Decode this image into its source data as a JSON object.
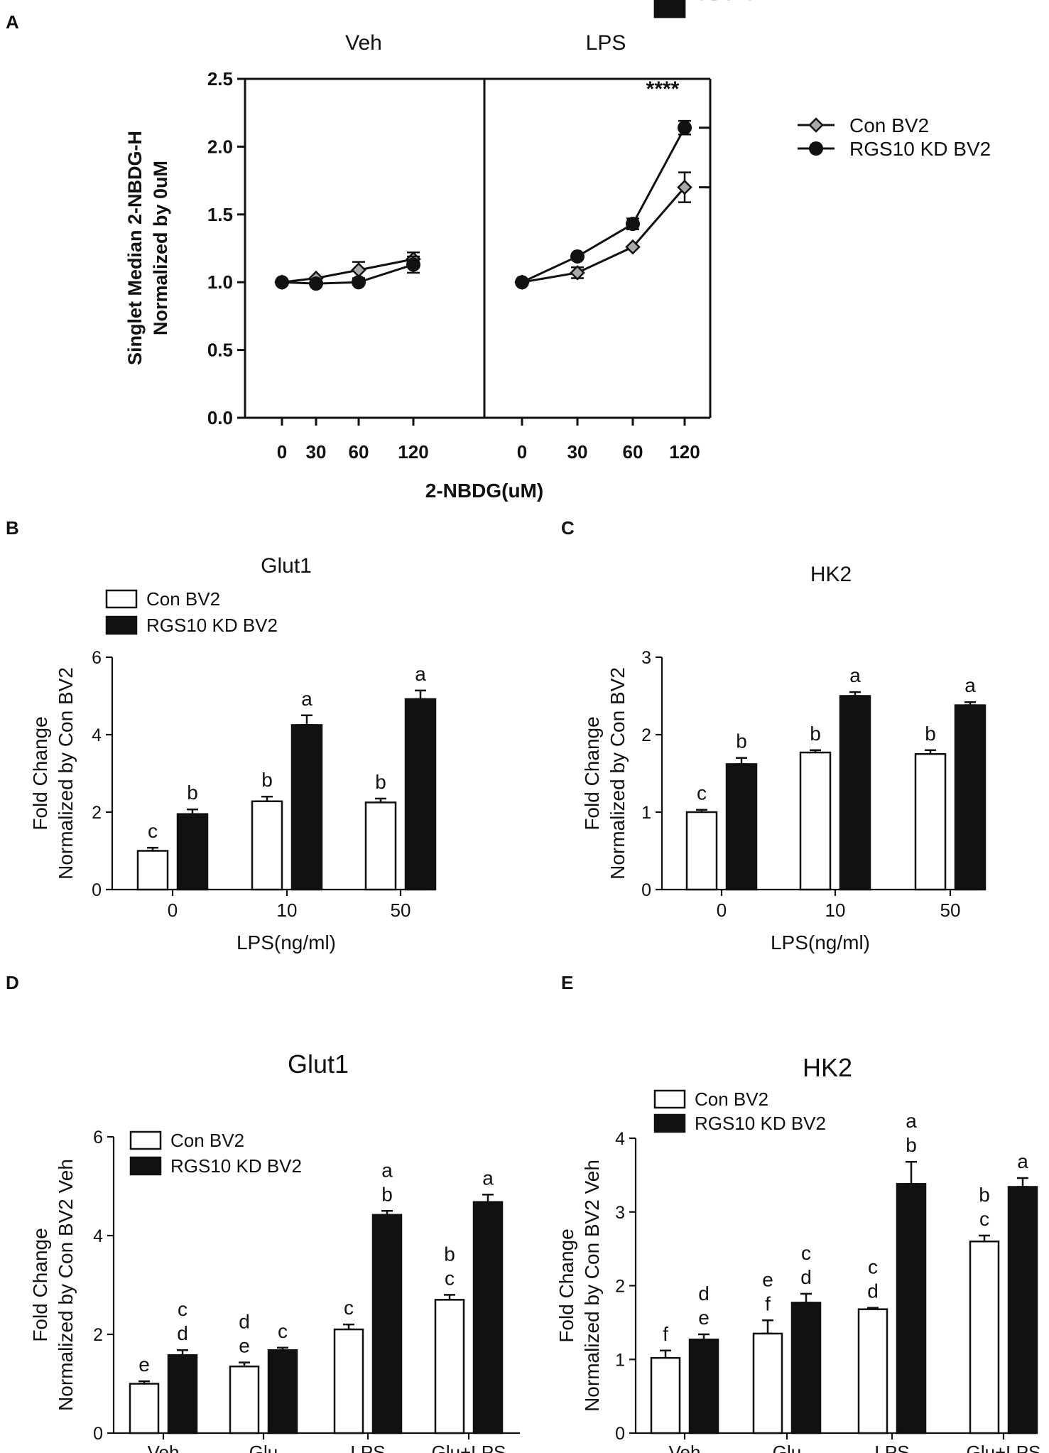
{
  "chart_data": [
    {
      "panel": "A",
      "type": "line",
      "facets": [
        "Veh",
        "LPS"
      ],
      "categories": [
        "0",
        "30",
        "60",
        "120"
      ],
      "xlabel": "2-NBDG(uM)",
      "ylabel": [
        "Singlet Median 2-NBDG-H",
        "Normalized by 0uM"
      ],
      "ylim": [
        0,
        2.5
      ],
      "yticks": [
        "0.0",
        "0.5",
        "1.0",
        "1.5",
        "2.0",
        "2.5"
      ],
      "significance": "****",
      "series": [
        {
          "name": "Con BV2",
          "marker": "diamond",
          "values": {
            "Veh": [
              1.0,
              1.03,
              1.09,
              1.17
            ],
            "LPS": [
              1.0,
              1.07,
              1.26,
              1.7
            ]
          },
          "errors": {
            "Veh": [
              0.02,
              0.02,
              0.06,
              0.05
            ],
            "LPS": [
              0.02,
              0.04,
              0.02,
              0.11
            ]
          }
        },
        {
          "name": "RGS10 KD BV2",
          "marker": "circle",
          "values": {
            "Veh": [
              1.0,
              0.99,
              1.0,
              1.13
            ],
            "LPS": [
              1.0,
              1.19,
              1.43,
              2.14
            ]
          },
          "errors": {
            "Veh": [
              0.02,
              0.02,
              0.02,
              0.06
            ],
            "LPS": [
              0.02,
              0.02,
              0.04,
              0.05
            ]
          }
        }
      ]
    },
    {
      "panel": "B",
      "type": "bar",
      "title": "Glut1",
      "categories": [
        "0",
        "10",
        "50"
      ],
      "xlabel": "LPS(ng/ml)",
      "ylabel": [
        "Fold Change",
        "Normalized by Con BV2"
      ],
      "ylim": [
        0,
        6
      ],
      "yticks": [
        "0",
        "2",
        "4",
        "6"
      ],
      "legend": [
        "Con BV2",
        "RGS10 KD BV2"
      ],
      "series": [
        {
          "name": "Con BV2",
          "values": [
            1.0,
            2.28,
            2.25
          ],
          "errors": [
            0.08,
            0.12,
            0.1
          ],
          "letters": [
            "c",
            "b",
            "b"
          ]
        },
        {
          "name": "RGS10 KD BV2",
          "values": [
            1.95,
            4.25,
            4.92
          ],
          "errors": [
            0.12,
            0.25,
            0.22
          ],
          "letters": [
            "b",
            "a",
            "a"
          ]
        }
      ]
    },
    {
      "panel": "C",
      "type": "bar",
      "title": "HK2",
      "categories": [
        "0",
        "10",
        "50"
      ],
      "xlabel": "LPS(ng/ml)",
      "ylabel": [
        "Fold Change",
        "Normalized by Con BV2"
      ],
      "ylim": [
        0,
        3
      ],
      "yticks": [
        "0",
        "1",
        "2",
        "3"
      ],
      "legend": [
        "Con BV2",
        "RGS10 KD BV2"
      ],
      "series": [
        {
          "name": "Con BV2",
          "values": [
            1.0,
            1.77,
            1.75
          ],
          "errors": [
            0.03,
            0.03,
            0.05
          ],
          "letters": [
            "c",
            "b",
            "b"
          ]
        },
        {
          "name": "RGS10 KD BV2",
          "values": [
            1.62,
            2.5,
            2.38
          ],
          "errors": [
            0.08,
            0.05,
            0.04
          ],
          "letters": [
            "b",
            "a",
            "a"
          ]
        }
      ]
    },
    {
      "panel": "D",
      "type": "bar",
      "title": "Glut1",
      "categories": [
        "Veh",
        "Glu",
        "LPS",
        "Glu+LPS"
      ],
      "xlabel": "",
      "ylabel": [
        "Fold Change",
        "Normalized by Con BV2 Veh"
      ],
      "ylim": [
        0,
        6
      ],
      "yticks": [
        "0",
        "2",
        "4",
        "6"
      ],
      "legend": [
        "Con BV2",
        "RGS10 KD BV2"
      ],
      "series": [
        {
          "name": "Con BV2",
          "values": [
            1.0,
            1.35,
            2.1,
            2.7
          ],
          "errors": [
            0.05,
            0.08,
            0.1,
            0.1
          ],
          "letters": [
            [
              "e"
            ],
            [
              "d",
              "e"
            ],
            [
              "c"
            ],
            [
              "b",
              "c"
            ]
          ]
        },
        {
          "name": "RGS10 KD BV2",
          "values": [
            1.58,
            1.68,
            4.42,
            4.68
          ],
          "errors": [
            0.1,
            0.05,
            0.08,
            0.15
          ],
          "letters": [
            [
              "c",
              "d"
            ],
            [
              "c"
            ],
            [
              "a",
              "b"
            ],
            [
              "a"
            ]
          ]
        }
      ]
    },
    {
      "panel": "E",
      "type": "bar",
      "title": "HK2",
      "categories": [
        "Veh",
        "Glu",
        "LPS",
        "Glu+LPS"
      ],
      "xlabel": "",
      "ylabel": [
        "Fold Change",
        "Normalized by Con BV2 Veh"
      ],
      "ylim": [
        0,
        4
      ],
      "yticks": [
        "0",
        "1",
        "2",
        "3",
        "4"
      ],
      "legend": [
        "Con BV2",
        "RGS10 KD BV2"
      ],
      "series": [
        {
          "name": "Con BV2",
          "values": [
            1.02,
            1.35,
            1.68,
            2.6
          ],
          "errors": [
            0.1,
            0.18,
            0.02,
            0.08
          ],
          "letters": [
            [
              "f"
            ],
            [
              "e",
              "f"
            ],
            [
              "c",
              "d"
            ],
            [
              "b",
              "c"
            ]
          ]
        },
        {
          "name": "RGS10 KD BV2",
          "values": [
            1.27,
            1.77,
            3.38,
            3.34
          ],
          "errors": [
            0.07,
            0.12,
            0.3,
            0.12
          ],
          "letters": [
            [
              "d",
              "e"
            ],
            [
              "c",
              "d"
            ],
            [
              "a",
              "b"
            ],
            [
              "a"
            ]
          ]
        }
      ]
    }
  ]
}
